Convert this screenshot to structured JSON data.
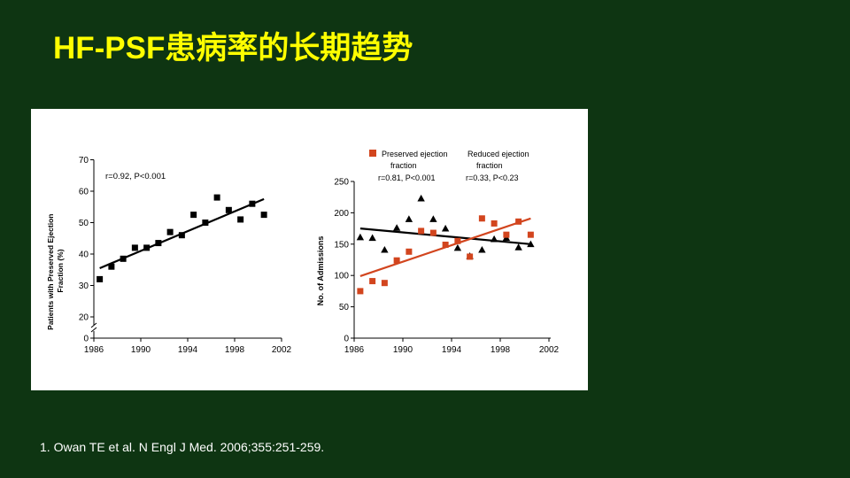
{
  "slide": {
    "title": "HF-PSF患病率的长期趋势",
    "citation": "1. Owan TE et al. N Engl J Med. 2006;355:251-259.",
    "colors": {
      "background": "#0e3512",
      "title": "#ffff00",
      "preserved": "#d2451e",
      "reduced": "#000000"
    }
  },
  "chart_data": [
    {
      "type": "scatter",
      "ylabel": "Patients with Preserved Ejection Fraction (%)",
      "ylabel_lines": [
        "Patients with Preserved Ejection",
        "Fraction (%)"
      ],
      "xlabel": "",
      "xlim": [
        1986,
        2002
      ],
      "x_ticks": [
        "1986",
        "1990",
        "1994",
        "1998",
        "2002"
      ],
      "ylim": [
        0,
        70
      ],
      "y_ticks": [
        "0",
        "20",
        "30",
        "40",
        "50",
        "60",
        "70"
      ],
      "axis_break": true,
      "annotation": "r=0.92, P<0.001",
      "series": [
        {
          "name": "Preserved ejection fraction",
          "color": "#000000",
          "marker": "square",
          "x": [
            1986.5,
            1987.5,
            1988.5,
            1989.5,
            1990.5,
            1991.5,
            1992.5,
            1993.5,
            1994.5,
            1995.5,
            1996.5,
            1997.5,
            1998.5,
            1999.5,
            2000.5
          ],
          "y": [
            32,
            36,
            38.5,
            42,
            42,
            43.5,
            47,
            46,
            52.5,
            50,
            58,
            54,
            51,
            56,
            52.5
          ],
          "trend": {
            "x": [
              1986.5,
              2000.5
            ],
            "y": [
              35.5,
              57.5
            ]
          }
        }
      ]
    },
    {
      "type": "scatter",
      "ylabel": "No. of Admissions",
      "xlabel": "",
      "xlim": [
        1986,
        2002
      ],
      "x_ticks": [
        "1986",
        "1990",
        "1994",
        "1998",
        "2002"
      ],
      "ylim": [
        0,
        250
      ],
      "y_ticks": [
        "0",
        "50",
        "100",
        "150",
        "200",
        "250"
      ],
      "legend": [
        {
          "name": "Preserved ejection",
          "name_line2": "fraction",
          "stat": "r=0.81, P<0.001"
        },
        {
          "name": "Reduced ejection",
          "name_line2": "fraction",
          "stat": "r=0.33, P<0.23"
        }
      ],
      "series": [
        {
          "name": "Preserved ejection fraction",
          "color": "#d2451e",
          "marker": "square",
          "x": [
            1986.5,
            1987.5,
            1988.5,
            1989.5,
            1990.5,
            1991.5,
            1992.5,
            1993.5,
            1994.5,
            1995.5,
            1996.5,
            1997.5,
            1998.5,
            1999.5,
            2000.5
          ],
          "y": [
            75,
            91,
            88,
            124,
            138,
            171,
            168,
            149,
            155,
            130,
            191,
            183,
            165,
            186,
            165
          ],
          "trend": {
            "x": [
              1986.5,
              2000.5
            ],
            "y": [
              99,
              191
            ]
          }
        },
        {
          "name": "Reduced ejection fraction",
          "color": "#000000",
          "marker": "triangle",
          "x": [
            1986.5,
            1987.5,
            1988.5,
            1989.5,
            1990.5,
            1991.5,
            1992.5,
            1993.5,
            1994.5,
            1995.5,
            1996.5,
            1997.5,
            1998.5,
            1999.5,
            2000.5
          ],
          "y": [
            161,
            160,
            141,
            176,
            190,
            223,
            190,
            175,
            144,
            131,
            141,
            158,
            160,
            145,
            150
          ],
          "trend": {
            "x": [
              1986.5,
              2000.5
            ],
            "y": [
              175,
              150
            ]
          }
        }
      ]
    }
  ]
}
